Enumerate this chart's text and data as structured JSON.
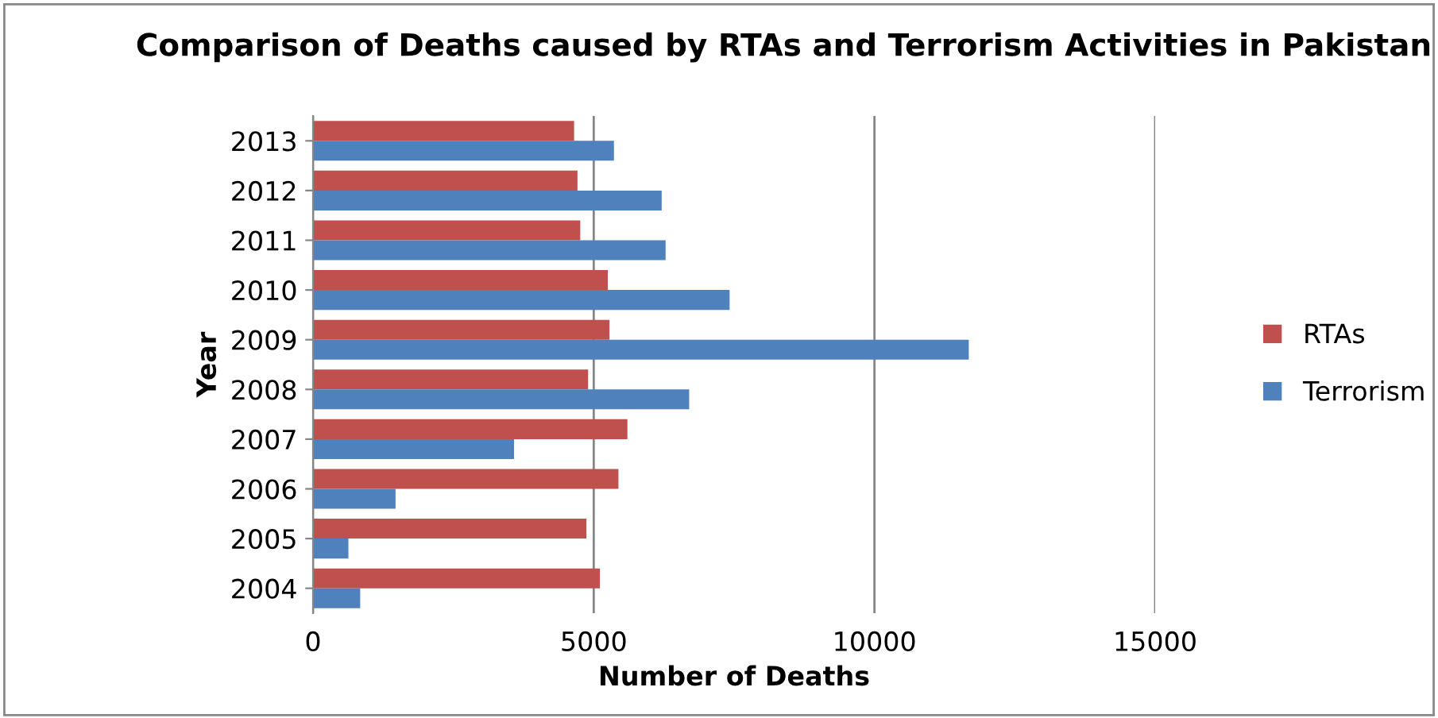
{
  "chart_data": {
    "type": "bar",
    "orientation": "horizontal",
    "title": "Comparison of Deaths caused by RTAs and Terrorism Activities in Pakistan",
    "xlabel": "Number of Deaths",
    "ylabel": "Year",
    "categories": [
      "2013",
      "2012",
      "2011",
      "2010",
      "2009",
      "2008",
      "2007",
      "2006",
      "2005",
      "2004"
    ],
    "series": [
      {
        "name": "RTAs",
        "color": "#c0504d",
        "values": [
          4650,
          4710,
          4760,
          5250,
          5280,
          4900,
          5600,
          5440,
          4870,
          5110
        ]
      },
      {
        "name": "Terrorism",
        "color": "#4f81bd",
        "values": [
          5360,
          6210,
          6280,
          7420,
          11680,
          6700,
          3580,
          1470,
          630,
          840
        ]
      }
    ],
    "xlim": [
      0,
      15000
    ],
    "xticks": [
      0,
      5000,
      10000,
      15000
    ],
    "grid": "x",
    "legend": "right"
  }
}
